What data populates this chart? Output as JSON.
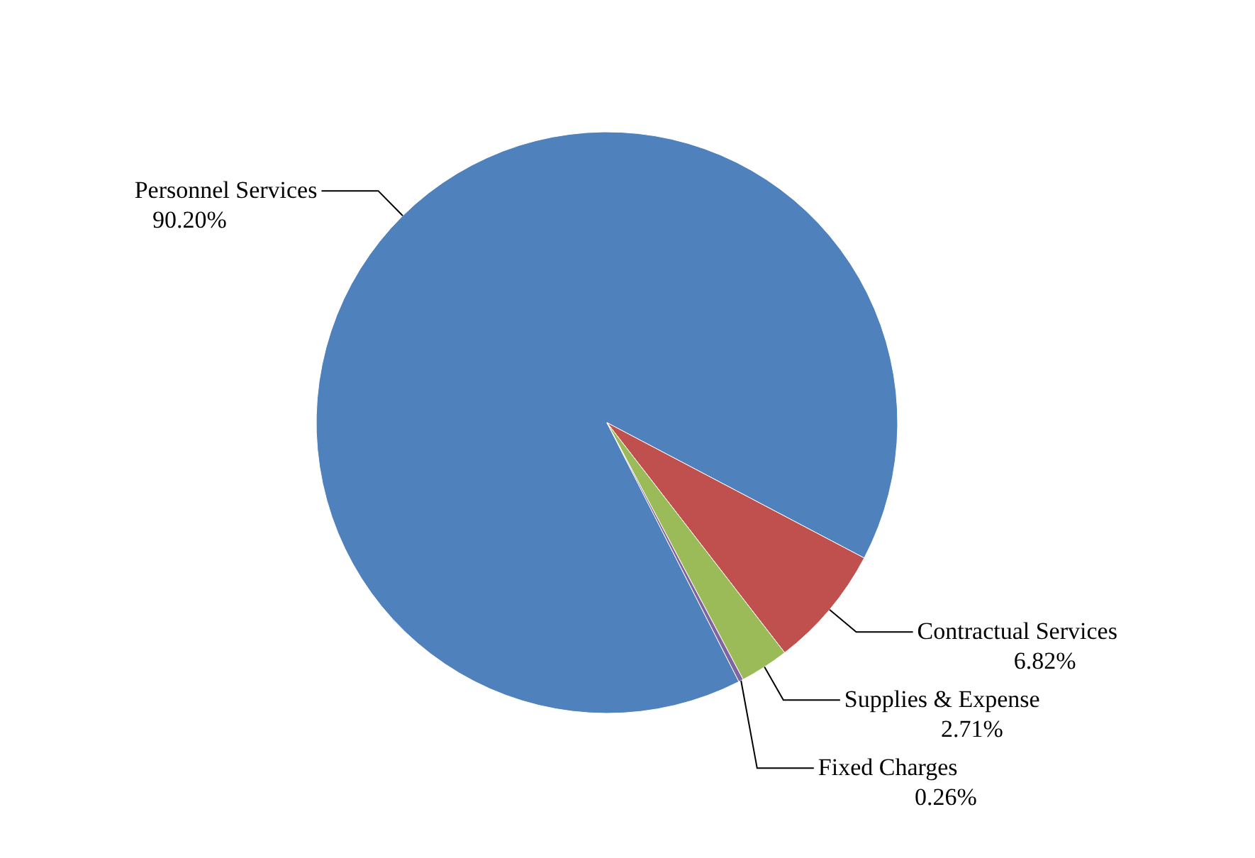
{
  "chart_data": {
    "type": "pie",
    "categories": [
      "Personnel Services",
      "Contractual Services",
      "Supplies & Expense",
      "Fixed Charges"
    ],
    "values": [
      90.2,
      6.82,
      2.71,
      0.26
    ],
    "value_labels": [
      "90.20%",
      "6.82%",
      "2.71%",
      "0.26%"
    ],
    "colors": [
      "#4f81bd",
      "#c0504d",
      "#9bbb59",
      "#8064a2"
    ],
    "legend": false
  }
}
